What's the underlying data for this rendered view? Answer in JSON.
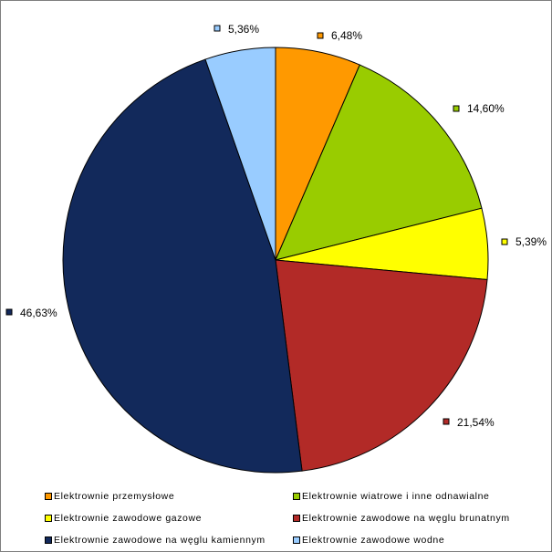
{
  "chart_data": {
    "type": "pie",
    "title": "",
    "slices": [
      {
        "label": "Elektrownie przemysłowe",
        "value": 6.48,
        "display": "6,48%",
        "color": "#ff9900"
      },
      {
        "label": "Elektrownie wiatrowe i inne odnawialne",
        "value": 14.6,
        "display": "14,60%",
        "color": "#99cc00"
      },
      {
        "label": "Elektrownie zawodowe gazowe",
        "value": 5.39,
        "display": "5,39%",
        "color": "#ffff00"
      },
      {
        "label": "Elektrownie zawodowe na węglu brunatnym",
        "value": 21.54,
        "display": "21,54%",
        "color": "#b22a27"
      },
      {
        "label": "Elektrownie zawodowe na węglu kamiennym",
        "value": 46.63,
        "display": "46,63%",
        "color": "#12295b"
      },
      {
        "label": "Elektrownie zawodowe wodne",
        "value": 5.36,
        "display": "5,36%",
        "color": "#99ccff"
      }
    ],
    "legend_position": "bottom",
    "start_angle_deg": 0,
    "direction": "clockwise"
  }
}
